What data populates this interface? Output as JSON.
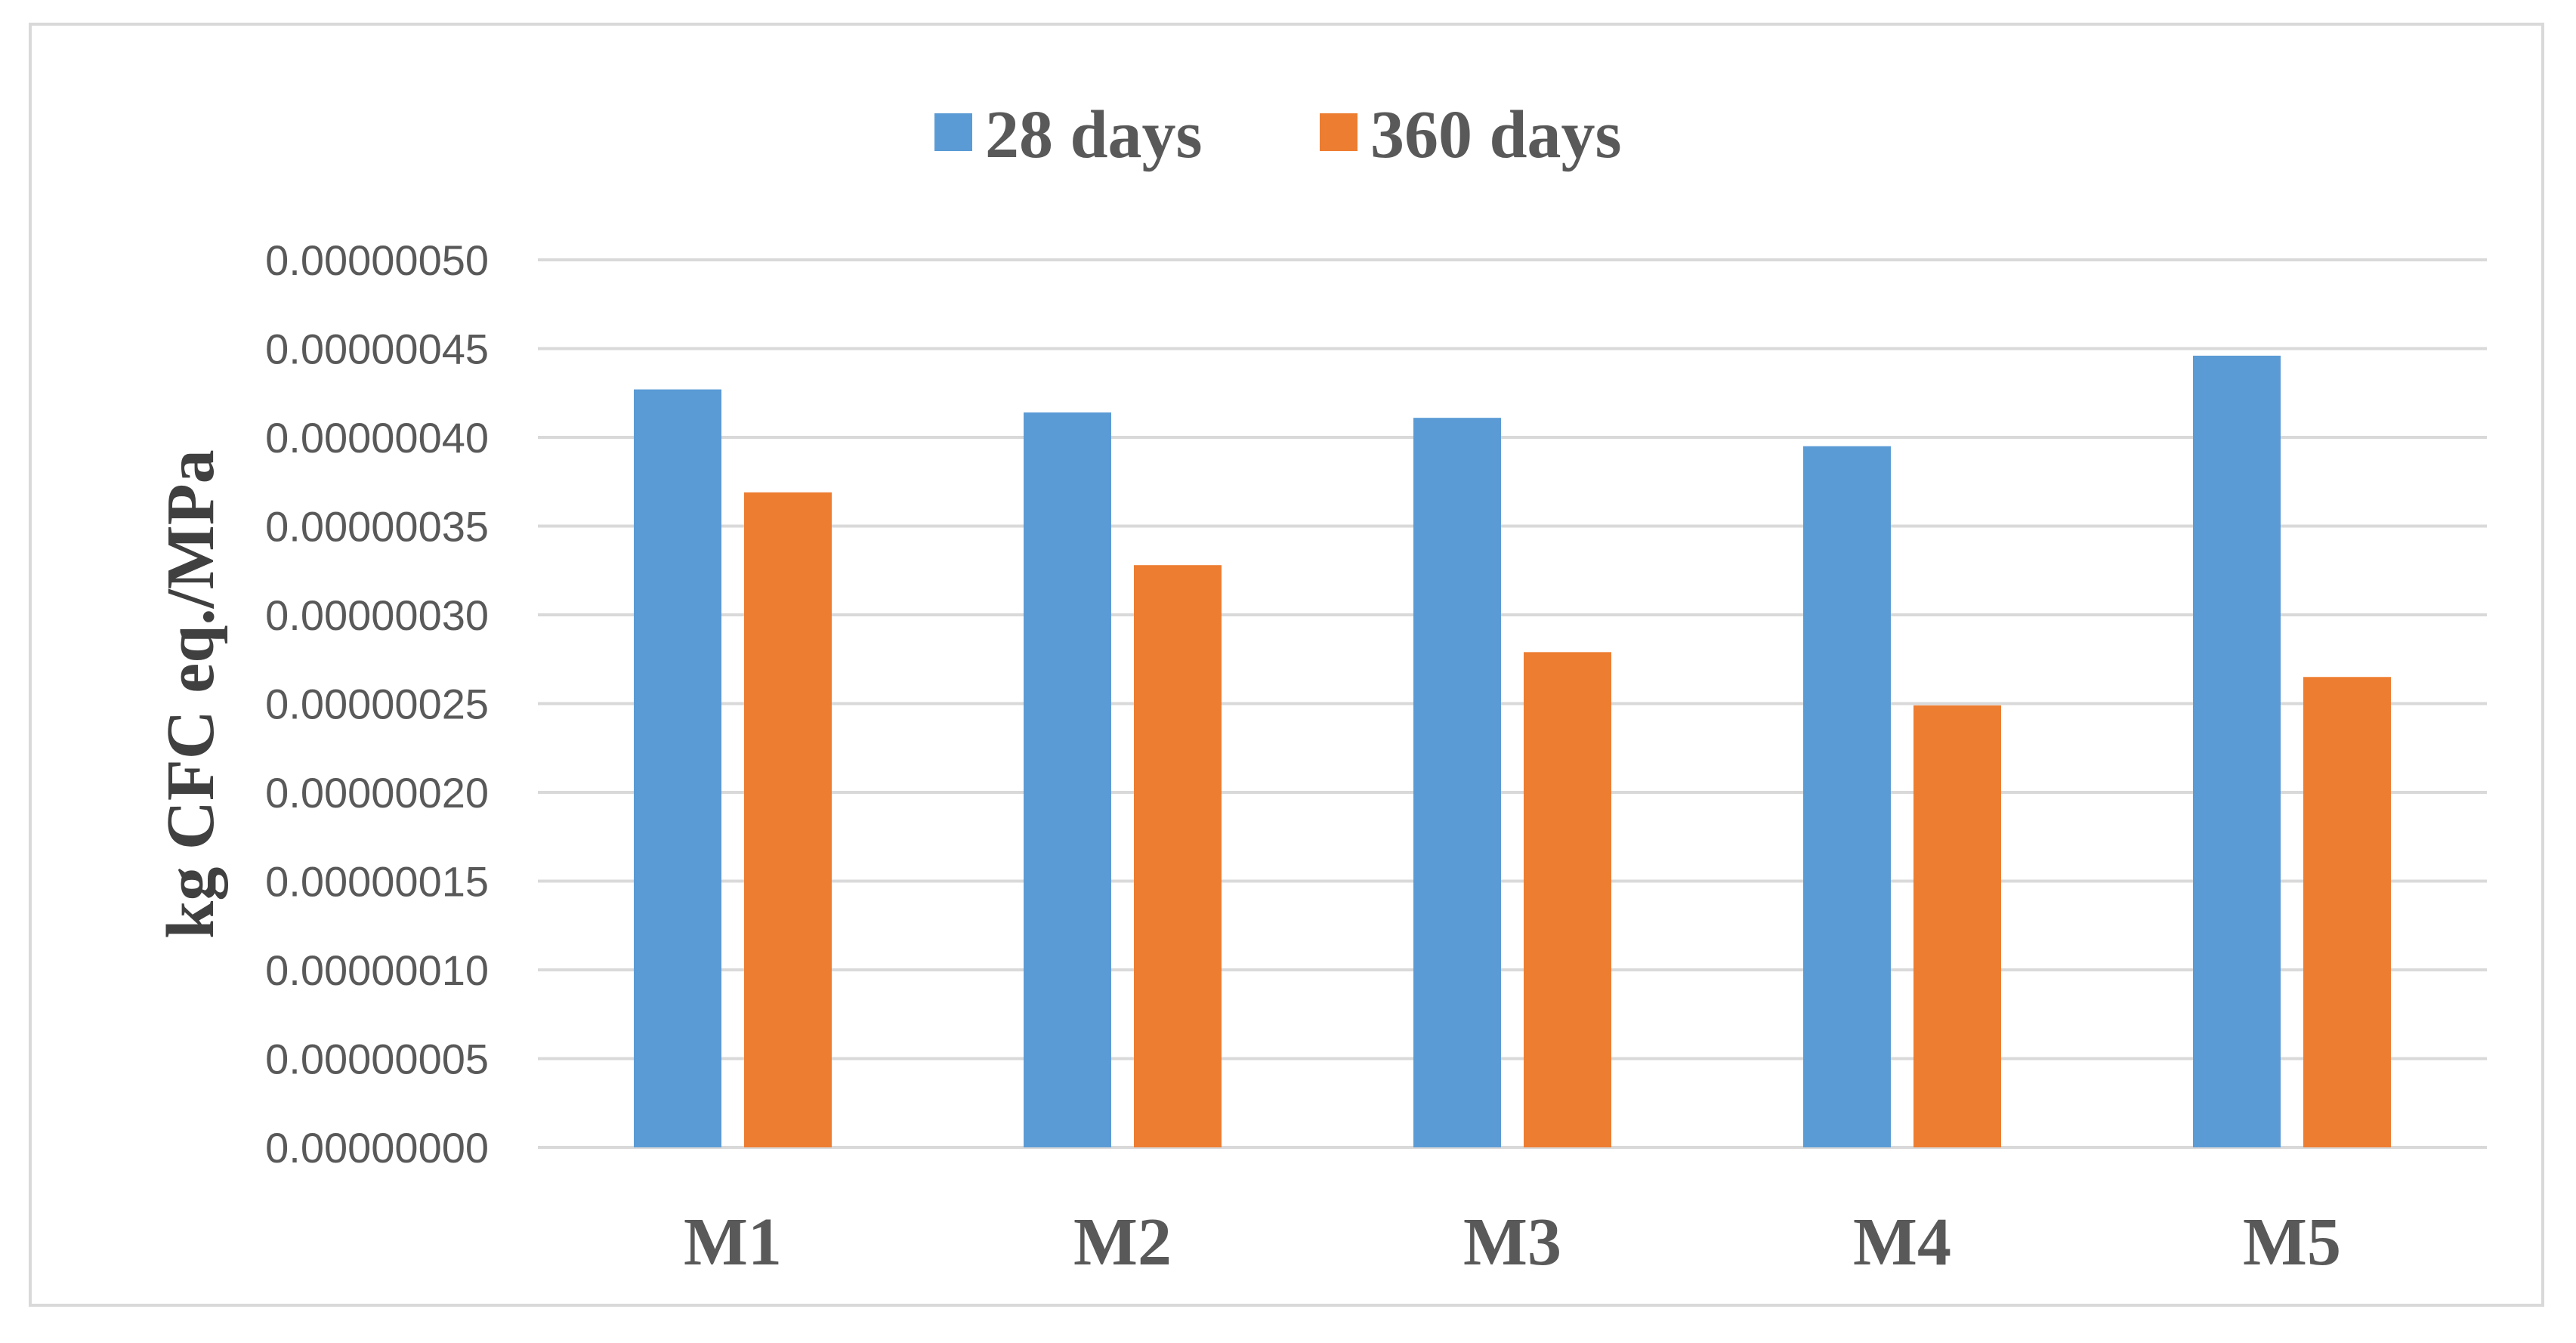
{
  "chart_data": {
    "type": "bar",
    "title": "",
    "xlabel": "",
    "ylabel": "kg CFC eq./MPa",
    "categories": [
      "M1",
      "M2",
      "M3",
      "M4",
      "M5"
    ],
    "series": [
      {
        "name": "28 days",
        "color": "#5b9bd5",
        "values": [
          4.27e-07,
          4.14e-07,
          4.11e-07,
          3.95e-07,
          4.46e-07
        ]
      },
      {
        "name": "360 days",
        "color": "#ed7d31",
        "values": [
          3.69e-07,
          3.28e-07,
          2.79e-07,
          2.49e-07,
          2.65e-07
        ]
      }
    ],
    "ylim": [
      0,
      5e-07
    ],
    "yticks": [
      "0.00000000",
      "0.00000005",
      "0.00000010",
      "0.00000015",
      "0.00000020",
      "0.00000025",
      "0.00000030",
      "0.00000035",
      "0.00000040",
      "0.00000045",
      "0.00000050"
    ],
    "grid": true,
    "legend_position": "top"
  }
}
